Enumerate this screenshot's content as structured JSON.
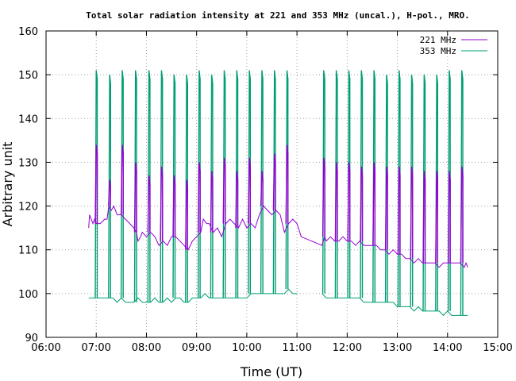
{
  "chart_data": {
    "type": "line",
    "title": "Total solar radiation intensity at 221 and 353 MHz (uncal.), H-pol., MRO.",
    "xlabel": "Time (UT)",
    "ylabel": "Arbitrary unit",
    "xlim": [
      "06:00",
      "15:00"
    ],
    "ylim": [
      90,
      160
    ],
    "xticks": [
      "06:00",
      "07:00",
      "08:00",
      "09:00",
      "10:00",
      "11:00",
      "12:00",
      "13:00",
      "14:00",
      "15:00"
    ],
    "yticks": [
      "90",
      "100",
      "110",
      "120",
      "130",
      "140",
      "150",
      "160"
    ],
    "grid": true,
    "legend_position": "top-right",
    "series": [
      {
        "name": "221 MHz",
        "color": "#9400d3",
        "points": [
          [
            "06:51",
            115
          ],
          [
            "06:52",
            118
          ],
          [
            "06:54",
            117
          ],
          [
            "06:56",
            116
          ],
          [
            "06:58",
            117
          ],
          [
            "07:00",
            116
          ],
          [
            "07:05",
            116
          ],
          [
            "07:10",
            117
          ],
          [
            "07:13",
            117
          ],
          [
            "07:15",
            120
          ],
          [
            "07:18",
            119
          ],
          [
            "07:21",
            120
          ],
          [
            "07:25",
            118
          ],
          [
            "07:30",
            118
          ],
          [
            "07:35",
            117
          ],
          [
            "07:40",
            116
          ],
          [
            "07:45",
            115
          ],
          [
            "07:48",
            114
          ],
          [
            "07:50",
            112
          ],
          [
            "07:53",
            113
          ],
          [
            "07:55",
            114
          ],
          [
            "08:00",
            113
          ],
          [
            "08:05",
            114
          ],
          [
            "08:10",
            113
          ],
          [
            "08:15",
            111
          ],
          [
            "08:20",
            112
          ],
          [
            "08:25",
            111
          ],
          [
            "08:30",
            113
          ],
          [
            "08:35",
            113
          ],
          [
            "08:40",
            112
          ],
          [
            "08:45",
            111
          ],
          [
            "08:50",
            110
          ],
          [
            "08:55",
            112
          ],
          [
            "09:00",
            113
          ],
          [
            "09:05",
            114
          ],
          [
            "09:08",
            117
          ],
          [
            "09:12",
            116
          ],
          [
            "09:15",
            116
          ],
          [
            "09:20",
            114
          ],
          [
            "09:25",
            115
          ],
          [
            "09:30",
            113
          ],
          [
            "09:35",
            116
          ],
          [
            "09:40",
            117
          ],
          [
            "09:45",
            116
          ],
          [
            "09:50",
            115
          ],
          [
            "09:55",
            117
          ],
          [
            "10:00",
            115
          ],
          [
            "10:05",
            116
          ],
          [
            "10:10",
            115
          ],
          [
            "10:15",
            118
          ],
          [
            "10:20",
            120
          ],
          [
            "10:25",
            119
          ],
          [
            "10:30",
            118
          ],
          [
            "10:35",
            119
          ],
          [
            "10:40",
            118
          ],
          [
            "10:45",
            114
          ],
          [
            "10:50",
            116
          ],
          [
            "10:55",
            117
          ],
          [
            "11:00",
            116
          ],
          [
            "11:05",
            113
          ],
          [
            "11:30",
            111
          ],
          [
            "11:33",
            113
          ],
          [
            "11:35",
            112
          ],
          [
            "11:40",
            113
          ],
          [
            "11:45",
            112
          ],
          [
            "11:50",
            112
          ],
          [
            "11:55",
            113
          ],
          [
            "12:00",
            112
          ],
          [
            "12:05",
            112
          ],
          [
            "12:10",
            111
          ],
          [
            "12:15",
            112
          ],
          [
            "12:20",
            111
          ],
          [
            "12:25",
            111
          ],
          [
            "12:30",
            111
          ],
          [
            "12:35",
            111
          ],
          [
            "12:40",
            110
          ],
          [
            "12:45",
            110
          ],
          [
            "12:50",
            109
          ],
          [
            "12:55",
            110
          ],
          [
            "13:00",
            109
          ],
          [
            "13:05",
            109
          ],
          [
            "13:10",
            108
          ],
          [
            "13:15",
            108
          ],
          [
            "13:20",
            107
          ],
          [
            "13:25",
            108
          ],
          [
            "13:30",
            107
          ],
          [
            "13:35",
            107
          ],
          [
            "13:40",
            107
          ],
          [
            "13:45",
            107
          ],
          [
            "13:50",
            106
          ],
          [
            "13:55",
            107
          ],
          [
            "14:00",
            107
          ],
          [
            "14:05",
            107
          ],
          [
            "14:10",
            107
          ],
          [
            "14:15",
            107
          ],
          [
            "14:20",
            106
          ],
          [
            "14:22",
            107
          ],
          [
            "14:24",
            106
          ]
        ],
        "spikes": [
          [
            "07:00",
            134
          ],
          [
            "07:16",
            126
          ],
          [
            "07:31",
            134
          ],
          [
            "07:47",
            130
          ],
          [
            "08:03",
            127
          ],
          [
            "08:18",
            129
          ],
          [
            "08:33",
            127
          ],
          [
            "08:48",
            126
          ],
          [
            "09:03",
            130
          ],
          [
            "09:18",
            128
          ],
          [
            "09:33",
            131
          ],
          [
            "09:48",
            128
          ],
          [
            "10:03",
            131
          ],
          [
            "10:18",
            128
          ],
          [
            "10:33",
            132
          ],
          [
            "10:48",
            134
          ],
          [
            "11:32",
            131
          ],
          [
            "11:47",
            130
          ],
          [
            "12:02",
            130
          ],
          [
            "12:17",
            129
          ],
          [
            "12:32",
            130
          ],
          [
            "12:47",
            129
          ],
          [
            "13:02",
            129
          ],
          [
            "13:17",
            129
          ],
          [
            "13:32",
            128
          ],
          [
            "13:47",
            128
          ],
          [
            "14:02",
            128
          ],
          [
            "14:17",
            129
          ]
        ]
      },
      {
        "name": "353 MHz",
        "color": "#009e73",
        "points": [
          [
            "06:51",
            99
          ],
          [
            "06:55",
            99
          ],
          [
            "07:00",
            99
          ],
          [
            "07:05",
            99
          ],
          [
            "07:10",
            99
          ],
          [
            "07:15",
            99
          ],
          [
            "07:20",
            99
          ],
          [
            "07:25",
            98
          ],
          [
            "07:30",
            99
          ],
          [
            "07:35",
            98
          ],
          [
            "07:40",
            98
          ],
          [
            "07:45",
            98
          ],
          [
            "07:50",
            99
          ],
          [
            "07:55",
            98
          ],
          [
            "08:00",
            98
          ],
          [
            "08:05",
            98
          ],
          [
            "08:10",
            99
          ],
          [
            "08:15",
            98
          ],
          [
            "08:20",
            98
          ],
          [
            "08:25",
            99
          ],
          [
            "08:30",
            98
          ],
          [
            "08:35",
            99
          ],
          [
            "08:40",
            99
          ],
          [
            "08:45",
            98
          ],
          [
            "08:50",
            98
          ],
          [
            "08:55",
            99
          ],
          [
            "09:00",
            99
          ],
          [
            "09:05",
            99
          ],
          [
            "09:10",
            100
          ],
          [
            "09:15",
            99
          ],
          [
            "09:20",
            99
          ],
          [
            "09:25",
            99
          ],
          [
            "09:30",
            99
          ],
          [
            "09:35",
            99
          ],
          [
            "09:40",
            99
          ],
          [
            "09:45",
            99
          ],
          [
            "09:50",
            99
          ],
          [
            "09:55",
            99
          ],
          [
            "10:00",
            99
          ],
          [
            "10:05",
            100
          ],
          [
            "10:10",
            100
          ],
          [
            "10:15",
            100
          ],
          [
            "10:20",
            100
          ],
          [
            "10:25",
            100
          ],
          [
            "10:30",
            100
          ],
          [
            "10:35",
            100
          ],
          [
            "10:40",
            100
          ],
          [
            "10:45",
            100
          ],
          [
            "10:50",
            101
          ],
          [
            "10:55",
            100
          ],
          [
            "11:00",
            100
          ],
          [
            "11:30",
            100
          ],
          [
            "11:35",
            99
          ],
          [
            "11:40",
            99
          ],
          [
            "11:45",
            99
          ],
          [
            "11:50",
            99
          ],
          [
            "11:55",
            99
          ],
          [
            "12:00",
            99
          ],
          [
            "12:05",
            99
          ],
          [
            "12:10",
            99
          ],
          [
            "12:15",
            99
          ],
          [
            "12:20",
            98
          ],
          [
            "12:25",
            98
          ],
          [
            "12:30",
            98
          ],
          [
            "12:35",
            98
          ],
          [
            "12:40",
            98
          ],
          [
            "12:45",
            98
          ],
          [
            "12:50",
            98
          ],
          [
            "12:55",
            98
          ],
          [
            "13:00",
            97
          ],
          [
            "13:05",
            97
          ],
          [
            "13:10",
            97
          ],
          [
            "13:15",
            97
          ],
          [
            "13:20",
            96
          ],
          [
            "13:25",
            97
          ],
          [
            "13:30",
            96
          ],
          [
            "13:35",
            96
          ],
          [
            "13:40",
            96
          ],
          [
            "13:45",
            96
          ],
          [
            "13:50",
            96
          ],
          [
            "13:55",
            95
          ],
          [
            "14:00",
            96
          ],
          [
            "14:05",
            95
          ],
          [
            "14:10",
            95
          ],
          [
            "14:15",
            95
          ],
          [
            "14:20",
            95
          ],
          [
            "14:24",
            95
          ]
        ],
        "spikes": [
          [
            "07:00",
            151
          ],
          [
            "07:16",
            150
          ],
          [
            "07:31",
            151
          ],
          [
            "07:47",
            151
          ],
          [
            "08:03",
            151
          ],
          [
            "08:18",
            151
          ],
          [
            "08:33",
            150
          ],
          [
            "08:48",
            150
          ],
          [
            "09:03",
            151
          ],
          [
            "09:18",
            150
          ],
          [
            "09:33",
            151
          ],
          [
            "09:48",
            151
          ],
          [
            "10:03",
            151
          ],
          [
            "10:18",
            151
          ],
          [
            "10:33",
            151
          ],
          [
            "10:48",
            151
          ],
          [
            "11:32",
            151
          ],
          [
            "11:47",
            151
          ],
          [
            "12:02",
            151
          ],
          [
            "12:17",
            151
          ],
          [
            "12:32",
            151
          ],
          [
            "12:47",
            150
          ],
          [
            "13:02",
            151
          ],
          [
            "13:17",
            150
          ],
          [
            "13:32",
            150
          ],
          [
            "13:47",
            150
          ],
          [
            "14:02",
            151
          ],
          [
            "14:17",
            151
          ]
        ]
      }
    ]
  }
}
